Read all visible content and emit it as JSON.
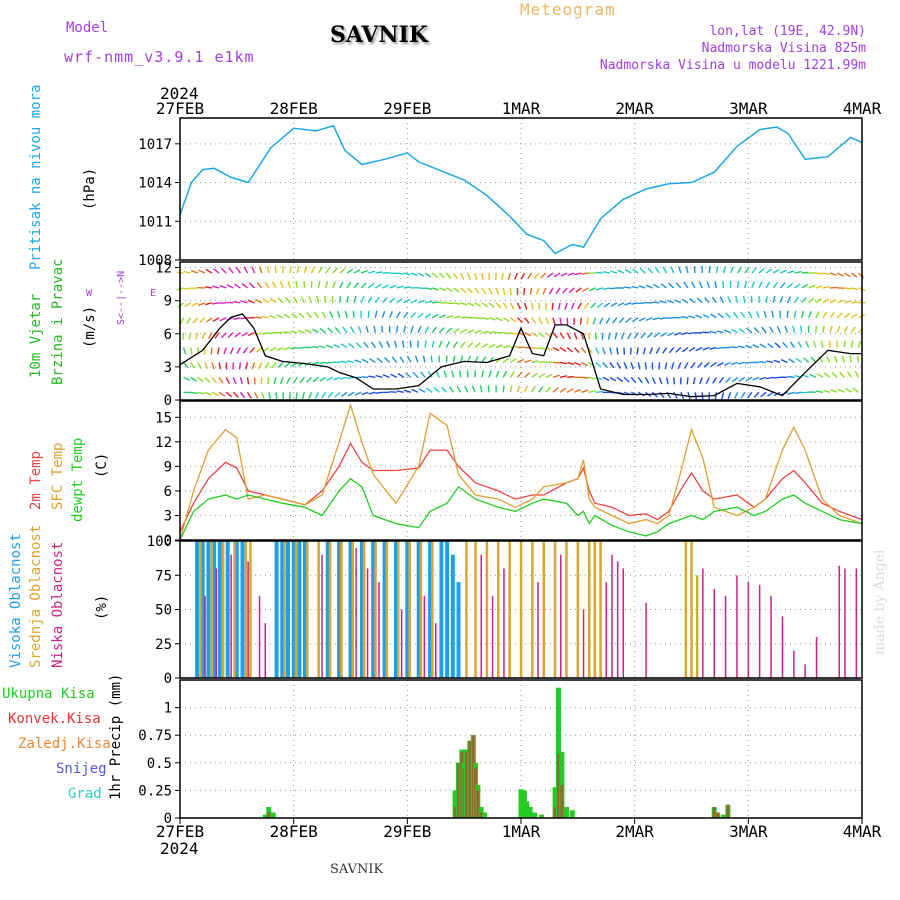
{
  "header": {
    "model_label": "Model",
    "model_name": "wrf-nmm_v3.9.1 e1km",
    "station": "SAVNIK",
    "product": "Meteogram",
    "coords": "lon,lat (19E, 42.9N)",
    "elevation": "Nadmorska Visina 825m",
    "model_elevation": "Nadmorska Visina u modelu 1221.99m",
    "footer_station": "SAVNIK",
    "credit": "made by Angel"
  },
  "colors": {
    "pressure": "#1ea7e6",
    "wind_label": "#22bb22",
    "t2m": "#ee4444",
    "sfc": "#e0a030",
    "dewpt": "#22cc22",
    "cloud_high": "#1e9fe8",
    "cloud_mid": "#d9a62e",
    "cloud_low": "#cc2288",
    "precip_total": "#22cc22",
    "precip_conv": "#ee3333",
    "precip_frz": "#ee8833",
    "precip_snow": "#5555dd",
    "precip_hail": "#33cccc",
    "purple": "#a040e0"
  },
  "time_axis": {
    "year": "2024",
    "labels": [
      "27FEB",
      "28FEB",
      "29FEB",
      "1MAR",
      "2MAR",
      "3MAR",
      "4MAR"
    ]
  },
  "panels": {
    "pressure": {
      "ylabel_main": "Pritisak na nivou mora",
      "ylabel_unit": "(hPa)"
    },
    "wind": {
      "ylabel_1": "10m Vjetar",
      "ylabel_2": "Brzina i Pravac",
      "ylabel_unit": "(m/s)",
      "compass_ns": "S<--|-->N",
      "compass_w": "W",
      "compass_e": "E"
    },
    "temp": {
      "ylabel_1": "2m Temp",
      "ylabel_2": "SFC Temp",
      "ylabel_3": "dewpt Temp",
      "ylabel_unit": "(C)"
    },
    "cloud": {
      "ylabel_1": "Visoka Oblacnost",
      "ylabel_2": "Srednja Oblacnost",
      "ylabel_3": "Niska Oblacnost",
      "ylabel_unit": "(%)"
    },
    "precip": {
      "ylabel_unit": "1hr Precip (mm)",
      "legend": [
        "Ukupna Kisa",
        "Konvek.Kisa",
        "Zaledj.Kisa",
        "Snijeg",
        "Grad"
      ]
    }
  },
  "chart_data": [
    {
      "type": "line",
      "title": "",
      "ylabel": "(hPa)",
      "ylim": [
        1008,
        1019
      ],
      "yticks": [
        1008,
        1011,
        1014,
        1017
      ],
      "x_days": [
        0,
        0.1,
        0.2,
        0.3,
        0.45,
        0.6,
        0.8,
        1.0,
        1.2,
        1.35,
        1.45,
        1.6,
        1.8,
        2.0,
        2.1,
        2.3,
        2.5,
        2.7,
        2.9,
        3.05,
        3.2,
        3.3,
        3.45,
        3.55,
        3.7,
        3.9,
        4.1,
        4.3,
        4.5,
        4.7,
        4.9,
        5.1,
        5.25,
        5.35,
        5.5,
        5.7,
        5.9,
        6.0
      ],
      "series": [
        {
          "values": [
            1011.5,
            1014.0,
            1015.0,
            1015.1,
            1014.4,
            1014.0,
            1016.7,
            1018.2,
            1018.0,
            1018.4,
            1016.5,
            1015.4,
            1015.8,
            1016.3,
            1015.6,
            1014.9,
            1014.2,
            1013.0,
            1011.4,
            1010.0,
            1009.5,
            1008.5,
            1009.2,
            1009.0,
            1011.2,
            1012.7,
            1013.5,
            1013.9,
            1014.0,
            1014.8,
            1016.8,
            1018.1,
            1018.3,
            1017.8,
            1015.8,
            1016.0,
            1017.5,
            1017.1
          ]
        }
      ]
    },
    {
      "type": "line",
      "title": "",
      "ylabel": "(m/s)",
      "ylim": [
        0,
        12.5
      ],
      "yticks": [
        0,
        3,
        6,
        9,
        12
      ],
      "x_days": [
        0,
        0.2,
        0.35,
        0.45,
        0.55,
        0.65,
        0.75,
        0.9,
        1.1,
        1.3,
        1.4,
        1.55,
        1.7,
        1.9,
        2.1,
        2.3,
        2.5,
        2.7,
        2.9,
        3.0,
        3.1,
        3.2,
        3.3,
        3.4,
        3.55,
        3.7,
        3.9,
        4.1,
        4.3,
        4.5,
        4.7,
        4.9,
        5.1,
        5.3,
        5.5,
        5.7,
        5.9,
        6.0
      ],
      "series": [
        {
          "values": [
            3.2,
            4.5,
            6.5,
            7.5,
            7.8,
            6.5,
            4.0,
            3.5,
            3.3,
            3.0,
            2.5,
            2.0,
            1.0,
            1.0,
            1.3,
            3.0,
            3.5,
            3.4,
            4.0,
            6.5,
            4.2,
            4.0,
            6.8,
            6.8,
            6.0,
            1.0,
            0.5,
            0.5,
            0.6,
            0.3,
            0.4,
            1.5,
            1.2,
            0.4,
            2.5,
            4.5,
            4.2,
            4.2
          ]
        }
      ]
    },
    {
      "type": "line",
      "title": "",
      "ylabel": "(C)",
      "ylim": [
        0,
        17
      ],
      "yticks": [
        0,
        3,
        6,
        9,
        12,
        15
      ],
      "x_days": [
        0,
        0.12,
        0.25,
        0.4,
        0.5,
        0.6,
        0.75,
        0.9,
        1.1,
        1.25,
        1.4,
        1.5,
        1.6,
        1.7,
        1.9,
        2.1,
        2.2,
        2.35,
        2.45,
        2.6,
        2.8,
        2.95,
        3.1,
        3.2,
        3.4,
        3.5,
        3.55,
        3.6,
        3.65,
        3.8,
        3.95,
        4.1,
        4.2,
        4.3,
        4.4,
        4.5,
        4.6,
        4.7,
        4.9,
        5.05,
        5.15,
        5.3,
        5.4,
        5.5,
        5.65,
        5.8,
        6.0
      ],
      "series": [
        {
          "name": "2m Temp",
          "values": [
            1.0,
            4.5,
            7.5,
            9.5,
            8.8,
            6.0,
            5.5,
            5.0,
            4.3,
            6.0,
            9.0,
            11.8,
            9.5,
            8.5,
            8.5,
            8.8,
            11.0,
            11.0,
            9.0,
            7.0,
            6.0,
            5.0,
            5.5,
            5.5,
            7.0,
            7.5,
            8.8,
            6.0,
            4.5,
            4.0,
            3.0,
            3.2,
            2.5,
            3.5,
            6.0,
            8.2,
            6.0,
            5.0,
            5.5,
            4.0,
            5.0,
            7.5,
            8.5,
            7.0,
            4.5,
            3.5,
            2.5
          ]
        },
        {
          "name": "SFC Temp",
          "values": [
            0.0,
            6.0,
            11.0,
            13.5,
            12.5,
            5.0,
            5.5,
            5.0,
            4.3,
            5.5,
            12.0,
            16.5,
            12.0,
            8.0,
            4.5,
            9.0,
            15.5,
            14.0,
            8.0,
            5.5,
            5.0,
            4.0,
            5.0,
            6.5,
            7.0,
            7.5,
            9.8,
            5.0,
            4.0,
            3.0,
            2.0,
            2.5,
            2.0,
            3.0,
            8.0,
            13.5,
            10.0,
            4.0,
            3.0,
            4.0,
            5.0,
            11.0,
            13.8,
            11.0,
            5.0,
            3.0,
            2.0
          ]
        },
        {
          "name": "dewpt Temp",
          "values": [
            0.0,
            3.5,
            5.0,
            5.5,
            5.0,
            5.5,
            5.0,
            4.5,
            4.0,
            3.0,
            6.0,
            7.5,
            6.5,
            3.0,
            2.0,
            1.5,
            3.5,
            4.5,
            6.5,
            5.0,
            4.0,
            3.5,
            4.5,
            5.0,
            4.5,
            3.0,
            3.5,
            2.0,
            3.0,
            1.8,
            1.0,
            0.5,
            1.0,
            2.0,
            2.5,
            3.0,
            2.5,
            3.5,
            4.0,
            3.0,
            3.5,
            5.0,
            5.5,
            4.5,
            3.5,
            2.5,
            2.0
          ]
        }
      ]
    },
    {
      "type": "bar",
      "title": "",
      "ylabel": "(%)",
      "ylim": [
        0,
        100
      ],
      "yticks": [
        0,
        25,
        50,
        75,
        100
      ],
      "series": [
        {
          "name": "Visoka Oblacnost",
          "x_days": [
            0.15,
            0.2,
            0.25,
            0.3,
            0.35,
            0.42,
            0.5,
            0.55,
            0.85,
            0.9,
            0.95,
            1.0,
            1.05,
            1.1,
            1.3,
            1.4,
            1.5,
            1.6,
            1.7,
            1.8,
            1.9,
            2.0,
            2.1,
            2.2,
            2.3,
            2.35,
            2.4,
            2.45
          ],
          "values": [
            100,
            100,
            100,
            100,
            100,
            100,
            100,
            100,
            100,
            100,
            100,
            100,
            100,
            100,
            100,
            100,
            100,
            100,
            100,
            100,
            100,
            100,
            100,
            100,
            100,
            100,
            90,
            70
          ]
        },
        {
          "name": "Srednja Oblacnost",
          "x_days": [
            0.18,
            0.28,
            0.38,
            0.48,
            0.58,
            0.62,
            0.92,
            1.02,
            1.12,
            1.22,
            1.32,
            1.42,
            1.52,
            1.62,
            1.72,
            1.82,
            1.92,
            2.02,
            2.12,
            2.22,
            2.52,
            2.6,
            2.7,
            2.8,
            2.9,
            3.0,
            3.1,
            3.2,
            3.3,
            3.4,
            3.5,
            3.6,
            3.65,
            3.7,
            4.45,
            4.5,
            4.55
          ],
          "values": [
            100,
            100,
            100,
            100,
            100,
            100,
            100,
            100,
            100,
            100,
            100,
            100,
            100,
            100,
            100,
            100,
            100,
            100,
            100,
            100,
            100,
            100,
            100,
            100,
            100,
            100,
            100,
            100,
            100,
            100,
            100,
            100,
            100,
            100,
            100,
            100,
            75
          ]
        },
        {
          "name": "Niska Oblacnost",
          "x_days": [
            0.22,
            0.32,
            0.45,
            0.6,
            0.7,
            0.75,
            1.25,
            1.55,
            1.65,
            1.75,
            1.95,
            2.15,
            2.25,
            2.65,
            2.75,
            2.85,
            3.15,
            3.35,
            3.55,
            3.75,
            3.8,
            3.85,
            3.9,
            4.1,
            4.6,
            4.7,
            4.8,
            4.9,
            5.0,
            5.1,
            5.2,
            5.3,
            5.4,
            5.5,
            5.6,
            5.8,
            5.85,
            5.95
          ],
          "values": [
            60,
            80,
            90,
            85,
            60,
            40,
            90,
            95,
            80,
            70,
            50,
            60,
            40,
            90,
            60,
            80,
            70,
            90,
            50,
            70,
            90,
            85,
            80,
            55,
            80,
            65,
            60,
            75,
            70,
            68,
            60,
            45,
            20,
            10,
            30,
            82,
            80,
            80
          ]
        }
      ]
    },
    {
      "type": "bar",
      "title": "",
      "ylabel": "1hr Precip (mm)",
      "ylim": [
        0,
        1.25
      ],
      "yticks": [
        0,
        0.25,
        0.5,
        0.75,
        1
      ],
      "x_days": [
        0.75,
        0.78,
        0.82,
        2.42,
        2.45,
        2.48,
        2.5,
        2.52,
        2.55,
        2.58,
        2.6,
        2.62,
        2.65,
        2.68,
        3.0,
        3.03,
        3.05,
        3.08,
        3.12,
        3.18,
        3.3,
        3.33,
        3.36,
        3.4,
        3.45,
        4.7,
        4.73,
        4.78,
        4.82
      ],
      "series": [
        {
          "name": "Ukupna Kisa",
          "values": [
            0.03,
            0.1,
            0.05,
            0.25,
            0.5,
            0.62,
            0.5,
            0.62,
            0.7,
            0.75,
            0.5,
            0.3,
            0.1,
            0.05,
            0.26,
            0.25,
            0.15,
            0.1,
            0.05,
            0.03,
            0.28,
            1.18,
            0.6,
            0.1,
            0.07,
            0.1,
            0.05,
            0.03,
            0.12
          ]
        },
        {
          "name": "Konvek.Kisa",
          "values": [
            0,
            0.05,
            0,
            0.1,
            0.5,
            0.6,
            0.45,
            0.6,
            0.7,
            0.75,
            0.45,
            0.25,
            0.05,
            0,
            0,
            0,
            0,
            0,
            0,
            0,
            0.1,
            0.58,
            0.3,
            0,
            0,
            0.1,
            0.05,
            0,
            0.12
          ]
        }
      ]
    }
  ]
}
